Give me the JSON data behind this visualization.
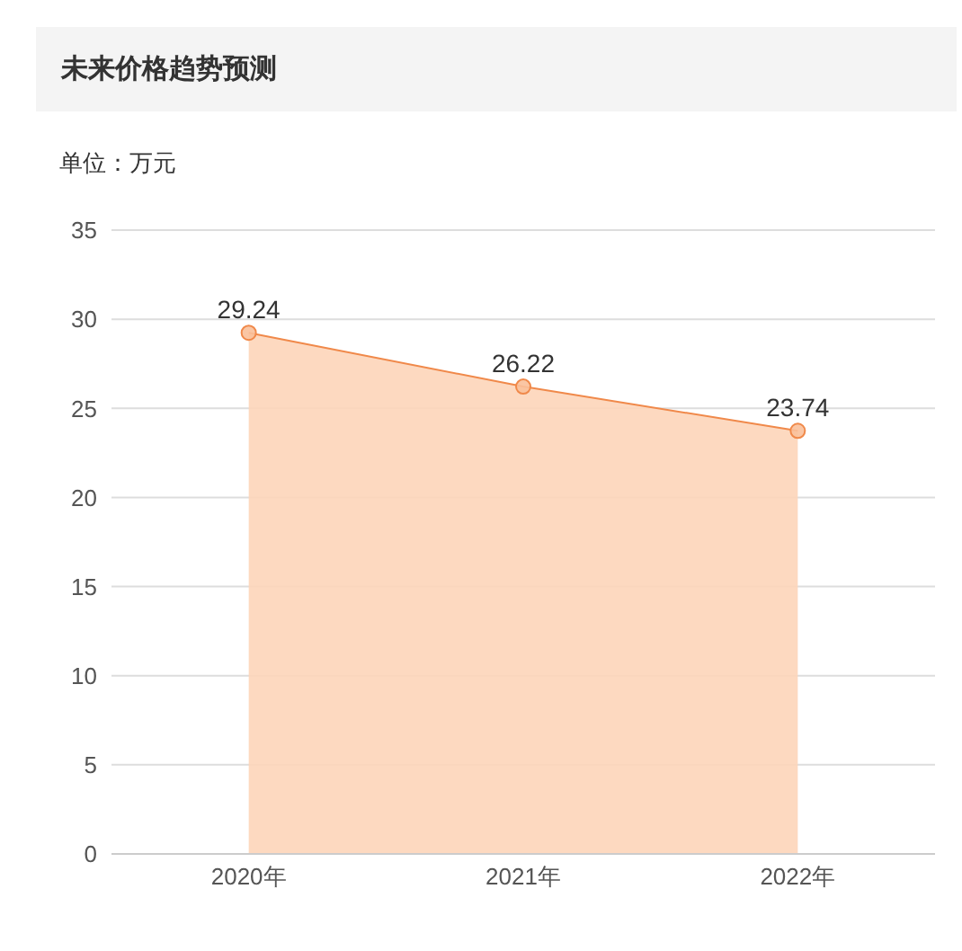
{
  "chart_data": {
    "type": "area",
    "title": "未来价格趋势预测",
    "ylabel": "单位：万元",
    "categories": [
      "2020年",
      "2021年",
      "2022年"
    ],
    "values": [
      29.24,
      26.22,
      23.74
    ],
    "color": "#f0894a",
    "ylim": [
      0,
      35
    ],
    "yticks": [
      0,
      5,
      10,
      15,
      20,
      25,
      30,
      35
    ],
    "grid": "y",
    "marker": "circle",
    "data_labels": true
  }
}
